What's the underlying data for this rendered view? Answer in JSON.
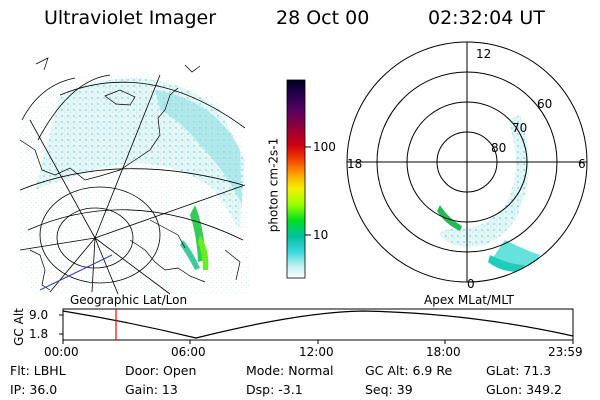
{
  "header": {
    "title": "Ultraviolet Imager",
    "date": "28 Oct 00",
    "time": "02:32:04 UT"
  },
  "left_panel": {
    "caption": "Geographic Lat/Lon"
  },
  "colorbar": {
    "unit_label": "photon cm-2s-1",
    "tick_labels": [
      "100",
      "10"
    ],
    "colors": [
      "#000020",
      "#2a0050",
      "#5a0060",
      "#a00030",
      "#d00010",
      "#f04000",
      "#ff9900",
      "#f2f200",
      "#99ff00",
      "#00dd22",
      "#00c0a0",
      "#40d8e0",
      "#c0f0f0",
      "#ffffff"
    ]
  },
  "right_panel": {
    "caption": "Apex MLat/MLT",
    "mlt_labels": {
      "top": "12",
      "left": "18",
      "right": "6",
      "bottom": "0"
    },
    "lat_labels": [
      "60",
      "70",
      "80"
    ]
  },
  "altitude_plot": {
    "ylabel": "GC Alt",
    "yticks": [
      "9.0",
      "1.8"
    ],
    "xticks": [
      "00:00",
      "06:00",
      "12:00",
      "18:00",
      "23:59"
    ],
    "marker_time": "02:32",
    "marker_color": "#ff0000"
  },
  "footer": {
    "row1": {
      "filter": "Flt: LBHL",
      "door": "Door: Open",
      "mode": "Mode: Normal",
      "gc_alt": "GC Alt: 6.9 Re",
      "glat": "GLat:  71.3"
    },
    "row2": {
      "ip": "IP: 36.0",
      "gain": "Gain: 13",
      "dsp": "Dsp:   -3.1",
      "seq": "Seq: 39",
      "glon": "GLon: 349.2"
    }
  }
}
